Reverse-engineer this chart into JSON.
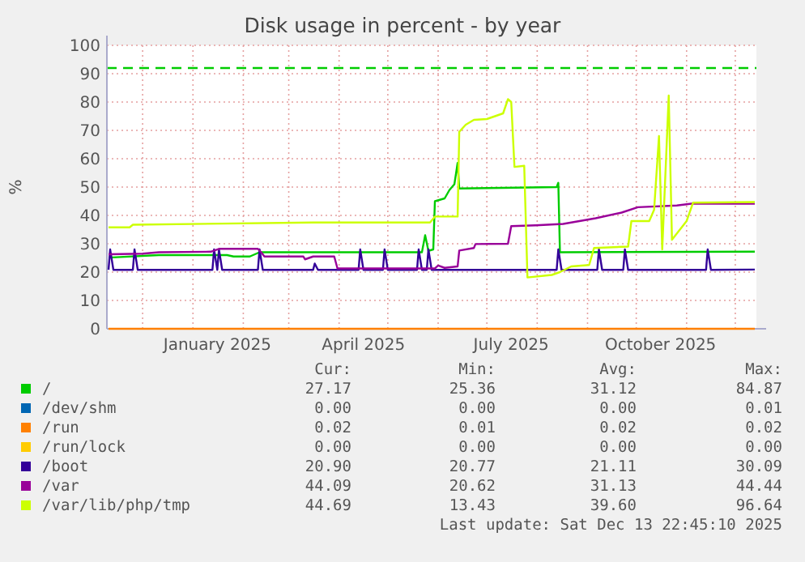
{
  "chart_data": {
    "type": "line",
    "title": "Disk usage in percent - by year",
    "ylabel": "%",
    "xlim": [
      "2024-11-09",
      "2025-12-14"
    ],
    "ylim": [
      0,
      100
    ],
    "yticks": [
      0,
      10,
      20,
      30,
      40,
      50,
      60,
      70,
      80,
      90,
      100
    ],
    "xticks": [
      {
        "value": "2024-12-01",
        "label": null
      },
      {
        "value": "2025-01-01",
        "label": null
      },
      {
        "value": "2025-01-16",
        "label": "January 2025"
      },
      {
        "value": "2025-02-01",
        "label": null
      },
      {
        "value": "2025-03-01",
        "label": null
      },
      {
        "value": "2025-04-01",
        "label": null
      },
      {
        "value": "2025-04-16",
        "label": "April 2025"
      },
      {
        "value": "2025-05-01",
        "label": null
      },
      {
        "value": "2025-06-01",
        "label": null
      },
      {
        "value": "2025-07-01",
        "label": null
      },
      {
        "value": "2025-07-16",
        "label": "July 2025"
      },
      {
        "value": "2025-08-01",
        "label": null
      },
      {
        "value": "2025-09-01",
        "label": null
      },
      {
        "value": "2025-10-01",
        "label": null
      },
      {
        "value": "2025-10-16",
        "label": "October 2025"
      },
      {
        "value": "2025-11-01",
        "label": null
      },
      {
        "value": "2025-12-01",
        "label": null
      }
    ],
    "grid": true,
    "legend": "bottom",
    "line_style": "solid",
    "marker": "none",
    "ref_lines": [
      {
        "axis": "y",
        "value": 92,
        "color": "#00cc00",
        "line_style": "dashed"
      }
    ],
    "series": [
      {
        "name": "/",
        "color": "#00cc00",
        "x": [
          "2024-11-10",
          "2024-12-11",
          "2025-01-22",
          "2025-01-26",
          "2025-02-05",
          "2025-02-11",
          "2025-05-22",
          "2025-05-24",
          "2025-05-26",
          "2025-05-29",
          "2025-05-30",
          "2025-06-05",
          "2025-06-08",
          "2025-06-11",
          "2025-06-13",
          "2025-06-14",
          "2025-08-13",
          "2025-08-14",
          "2025-08-15",
          "2025-12-13"
        ],
        "values": [
          25.1,
          26,
          26,
          25.5,
          25.5,
          27,
          27,
          33,
          27.5,
          28,
          45,
          46,
          49,
          51,
          58.5,
          49.5,
          50,
          51.5,
          27,
          27.2
        ]
      },
      {
        "name": "/dev/shm",
        "color": "#0066b3"
      },
      {
        "name": "/run",
        "color": "#ff8000",
        "x": [
          "2024-11-10",
          "2025-12-13"
        ],
        "values": [
          0,
          0
        ]
      },
      {
        "name": "/run/lock",
        "color": "#ffcc00"
      },
      {
        "name": "/boot",
        "color": "#330099",
        "x": [
          "2024-11-10",
          "2024-11-11",
          "2024-11-13",
          "2024-11-25",
          "2024-11-26",
          "2024-11-28",
          "2025-01-13",
          "2025-01-14",
          "2025-01-16",
          "2025-01-17",
          "2025-01-19",
          "2025-02-10",
          "2025-02-11",
          "2025-02-13",
          "2025-03-16",
          "2025-03-17",
          "2025-03-19",
          "2025-04-13",
          "2025-04-14",
          "2025-04-16",
          "2025-04-28",
          "2025-04-29",
          "2025-05-01",
          "2025-05-19",
          "2025-05-20",
          "2025-05-22",
          "2025-05-25",
          "2025-05-26",
          "2025-05-28",
          "2025-08-13",
          "2025-08-14",
          "2025-08-16",
          "2025-09-07",
          "2025-09-08",
          "2025-09-10",
          "2025-09-23",
          "2025-09-24",
          "2025-09-26",
          "2025-11-13",
          "2025-11-14",
          "2025-11-16",
          "2025-12-13"
        ],
        "values": [
          20.8,
          28,
          20.8,
          20.8,
          28,
          20.8,
          20.8,
          28,
          20.8,
          28,
          20.8,
          20.8,
          28,
          20.8,
          20.8,
          23,
          20.8,
          20.8,
          28,
          20.8,
          20.8,
          28,
          20.8,
          20.8,
          28,
          20.8,
          20.8,
          28,
          20.8,
          20.8,
          28,
          20.8,
          20.8,
          28,
          20.8,
          20.8,
          28,
          20.8,
          20.8,
          28,
          20.8,
          20.9
        ]
      },
      {
        "name": "/var",
        "color": "#990099",
        "x": [
          "2024-11-10",
          "2024-12-01",
          "2024-12-11",
          "2025-01-12",
          "2025-01-17",
          "2025-02-10",
          "2025-02-12",
          "2025-02-14",
          "2025-03-10",
          "2025-03-11",
          "2025-03-16",
          "2025-03-29",
          "2025-03-31",
          "2025-05-30",
          "2025-06-01",
          "2025-06-05",
          "2025-06-13",
          "2025-06-14",
          "2025-06-23",
          "2025-06-24",
          "2025-07-14",
          "2025-07-16",
          "2025-07-31",
          "2025-08-17",
          "2025-09-06",
          "2025-09-22",
          "2025-10-02",
          "2025-10-26",
          "2025-11-05",
          "2025-12-13"
        ],
        "values": [
          26.3,
          26.5,
          27,
          27.2,
          28.2,
          28.2,
          27,
          25.5,
          25.5,
          24.5,
          25.5,
          25.5,
          21.3,
          21.3,
          22.3,
          21.5,
          22,
          27.6,
          28.5,
          29.9,
          30,
          36.2,
          36.5,
          37,
          39,
          41,
          42.9,
          43.5,
          44.2,
          44.1
        ]
      },
      {
        "name": "/var/lib/php/tmp",
        "color": "#ccff00",
        "x": [
          "2024-11-10",
          "2024-11-23",
          "2024-11-25",
          "2025-03-16",
          "2025-05-27",
          "2025-05-30",
          "2025-06-13",
          "2025-06-14",
          "2025-06-18",
          "2025-06-23",
          "2025-07-01",
          "2025-07-11",
          "2025-07-14",
          "2025-07-16",
          "2025-07-18",
          "2025-07-24",
          "2025-07-26",
          "2025-08-10",
          "2025-08-15",
          "2025-08-22",
          "2025-09-02",
          "2025-09-05",
          "2025-09-26",
          "2025-09-28",
          "2025-10-09",
          "2025-10-12",
          "2025-10-15",
          "2025-10-17",
          "2025-10-21",
          "2025-10-23",
          "2025-11-01",
          "2025-11-05",
          "2025-12-13"
        ],
        "values": [
          35.8,
          35.8,
          36.7,
          37.5,
          37.5,
          39.6,
          39.6,
          69.5,
          72,
          73.7,
          74,
          76,
          81,
          80,
          57.1,
          57.5,
          18.1,
          19,
          20,
          22,
          22.5,
          28.5,
          29,
          38,
          38,
          42,
          68,
          28,
          82.3,
          31.4,
          38,
          44.5,
          44.7
        ]
      }
    ],
    "annotations": [
      "Cur:",
      "Min:",
      "Avg:",
      "Max:",
      "27.17",
      "25.36",
      "31.12",
      "84.87",
      "0.00",
      "0.00",
      "0.00",
      "0.01",
      "0.02",
      "0.01",
      "0.02",
      "0.02",
      "0.00",
      "0.00",
      "0.00",
      "0.00",
      "20.90",
      "20.77",
      "21.11",
      "30.09",
      "44.09",
      "20.62",
      "31.13",
      "44.44",
      "44.69",
      "13.43",
      "39.60",
      "96.64",
      "Last update: Sat Dec 13 22:45:10 2025"
    ]
  }
}
